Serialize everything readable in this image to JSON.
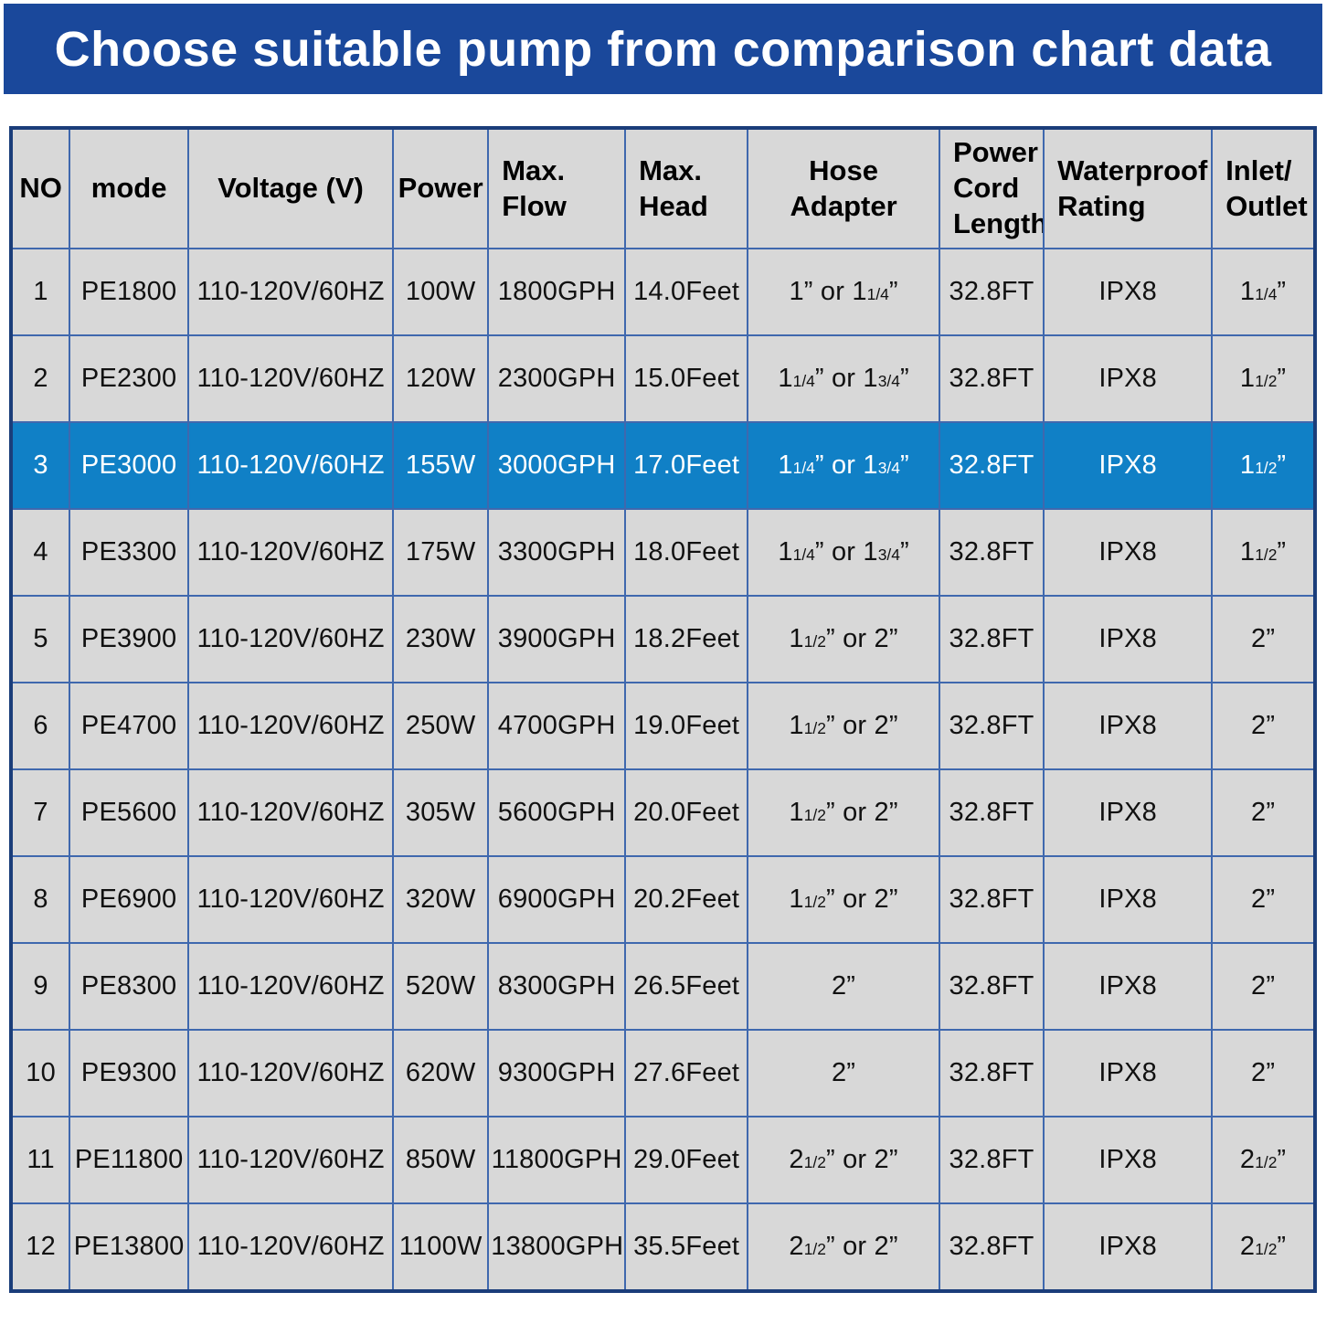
{
  "chart_data": {
    "type": "table",
    "title": "Choose suitable pump from comparison chart data",
    "columns": [
      {
        "key": "no",
        "label": "NO"
      },
      {
        "key": "mode",
        "label": "mode"
      },
      {
        "key": "voltage",
        "label": "Voltage (V)"
      },
      {
        "key": "power",
        "label": "Power"
      },
      {
        "key": "max_flow",
        "label": "Max.\nFlow"
      },
      {
        "key": "max_head",
        "label": "Max.\nHead"
      },
      {
        "key": "hose_adapter",
        "label": "Hose Adapter"
      },
      {
        "key": "power_cord",
        "label": "Power\nCord\nLength"
      },
      {
        "key": "waterproof",
        "label": "Waterproof\nRating"
      },
      {
        "key": "inlet_outlet",
        "label": "Inlet/\nOutlet"
      }
    ],
    "rows": [
      {
        "no": "1",
        "mode": "PE1800",
        "voltage": "110-120V/60HZ",
        "power": "100W",
        "max_flow": "1800GPH",
        "max_head": "14.0Feet",
        "hose_adapter": "1” or 1 1/4”",
        "power_cord": "32.8FT",
        "waterproof": "IPX8",
        "inlet_outlet": "1 1/4”",
        "highlighted": false
      },
      {
        "no": "2",
        "mode": "PE2300",
        "voltage": "110-120V/60HZ",
        "power": "120W",
        "max_flow": "2300GPH",
        "max_head": "15.0Feet",
        "hose_adapter": "1 1/4” or 1 3/4”",
        "power_cord": "32.8FT",
        "waterproof": "IPX8",
        "inlet_outlet": "1 1/2”",
        "highlighted": false
      },
      {
        "no": "3",
        "mode": "PE3000",
        "voltage": "110-120V/60HZ",
        "power": "155W",
        "max_flow": "3000GPH",
        "max_head": "17.0Feet",
        "hose_adapter": "1 1/4” or 1 3/4”",
        "power_cord": "32.8FT",
        "waterproof": "IPX8",
        "inlet_outlet": "1 1/2”",
        "highlighted": true
      },
      {
        "no": "4",
        "mode": "PE3300",
        "voltage": "110-120V/60HZ",
        "power": "175W",
        "max_flow": "3300GPH",
        "max_head": "18.0Feet",
        "hose_adapter": "1 1/4” or 1 3/4”",
        "power_cord": "32.8FT",
        "waterproof": "IPX8",
        "inlet_outlet": "1 1/2”",
        "highlighted": false
      },
      {
        "no": "5",
        "mode": "PE3900",
        "voltage": "110-120V/60HZ",
        "power": "230W",
        "max_flow": "3900GPH",
        "max_head": "18.2Feet",
        "hose_adapter": "1 1/2” or 2”",
        "power_cord": "32.8FT",
        "waterproof": "IPX8",
        "inlet_outlet": "2”",
        "highlighted": false
      },
      {
        "no": "6",
        "mode": "PE4700",
        "voltage": "110-120V/60HZ",
        "power": "250W",
        "max_flow": "4700GPH",
        "max_head": "19.0Feet",
        "hose_adapter": "1 1/2” or 2”",
        "power_cord": "32.8FT",
        "waterproof": "IPX8",
        "inlet_outlet": "2”",
        "highlighted": false
      },
      {
        "no": "7",
        "mode": "PE5600",
        "voltage": "110-120V/60HZ",
        "power": "305W",
        "max_flow": "5600GPH",
        "max_head": "20.0Feet",
        "hose_adapter": "1 1/2” or 2”",
        "power_cord": "32.8FT",
        "waterproof": "IPX8",
        "inlet_outlet": "2”",
        "highlighted": false
      },
      {
        "no": "8",
        "mode": "PE6900",
        "voltage": "110-120V/60HZ",
        "power": "320W",
        "max_flow": "6900GPH",
        "max_head": "20.2Feet",
        "hose_adapter": "1 1/2” or 2”",
        "power_cord": "32.8FT",
        "waterproof": "IPX8",
        "inlet_outlet": "2”",
        "highlighted": false
      },
      {
        "no": "9",
        "mode": "PE8300",
        "voltage": "110-120V/60HZ",
        "power": "520W",
        "max_flow": "8300GPH",
        "max_head": "26.5Feet",
        "hose_adapter": "2”",
        "power_cord": "32.8FT",
        "waterproof": "IPX8",
        "inlet_outlet": "2”",
        "highlighted": false
      },
      {
        "no": "10",
        "mode": "PE9300",
        "voltage": "110-120V/60HZ",
        "power": "620W",
        "max_flow": "9300GPH",
        "max_head": "27.6Feet",
        "hose_adapter": "2”",
        "power_cord": "32.8FT",
        "waterproof": "IPX8",
        "inlet_outlet": "2”",
        "highlighted": false
      },
      {
        "no": "11",
        "mode": "PE11800",
        "voltage": "110-120V/60HZ",
        "power": "850W",
        "max_flow": "11800GPH",
        "max_head": "29.0Feet",
        "hose_adapter": "2 1/2” or 2”",
        "power_cord": "32.8FT",
        "waterproof": "IPX8",
        "inlet_outlet": "2 1/2”",
        "highlighted": false
      },
      {
        "no": "12",
        "mode": "PE13800",
        "voltage": "110-120V/60HZ",
        "power": "1100W",
        "max_flow": "13800GPH",
        "max_head": "35.5Feet",
        "hose_adapter": "2 1/2” or 2”",
        "power_cord": "32.8FT",
        "waterproof": "IPX8",
        "inlet_outlet": "2 1/2”",
        "highlighted": false
      }
    ],
    "layout_hints": {
      "highlighted_row_index": 2,
      "grid": true
    },
    "colors": {
      "banner_blue": "#1a489b",
      "highlight_blue": "#1080c6",
      "cell_gray": "#d8d8d8",
      "grid_blue": "#3f68ae",
      "outer_border_navy": "#1b3d7a",
      "text_black": "#111111",
      "text_white": "#ffffff"
    }
  }
}
